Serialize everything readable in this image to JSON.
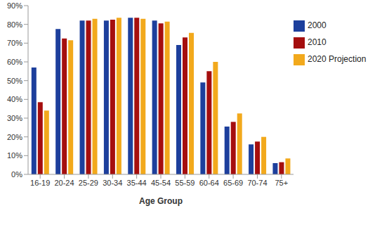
{
  "chart_data": {
    "type": "bar",
    "x_label": "Age Group",
    "categories": [
      "16-19",
      "20-24",
      "25-29",
      "30-34",
      "35-44",
      "45-54",
      "55-59",
      "60-64",
      "65-69",
      "70-74",
      "75+"
    ],
    "series": [
      {
        "name": "2000",
        "color": "#1d3f9c",
        "values": [
          57,
          77.5,
          82,
          82,
          83.5,
          82,
          69,
          49,
          25.5,
          16,
          6
        ]
      },
      {
        "name": "2010",
        "color": "#a50e0e",
        "values": [
          38.5,
          72.5,
          82,
          82.5,
          83.5,
          80.5,
          73,
          55,
          28,
          17.5,
          6.5
        ]
      },
      {
        "name": "2020 Projection",
        "color": "#f2a91c",
        "values": [
          34,
          71.5,
          83,
          83.5,
          83,
          81.5,
          75.5,
          60,
          32.5,
          20,
          8.5
        ]
      }
    ],
    "ylim": [
      0,
      90
    ],
    "yticks": [
      {
        "value": 0,
        "label": "0%"
      },
      {
        "value": 10,
        "label": "10%"
      },
      {
        "value": 20,
        "label": "20%"
      },
      {
        "value": 30,
        "label": "30%"
      },
      {
        "value": 40,
        "label": "40%"
      },
      {
        "value": 50,
        "label": "50%"
      },
      {
        "value": 60,
        "label": "60%"
      },
      {
        "value": 70,
        "label": "70%"
      },
      {
        "value": 80,
        "label": "80%"
      },
      {
        "value": 90,
        "label": "90%"
      }
    ],
    "grid": false,
    "legend": "upper right"
  }
}
